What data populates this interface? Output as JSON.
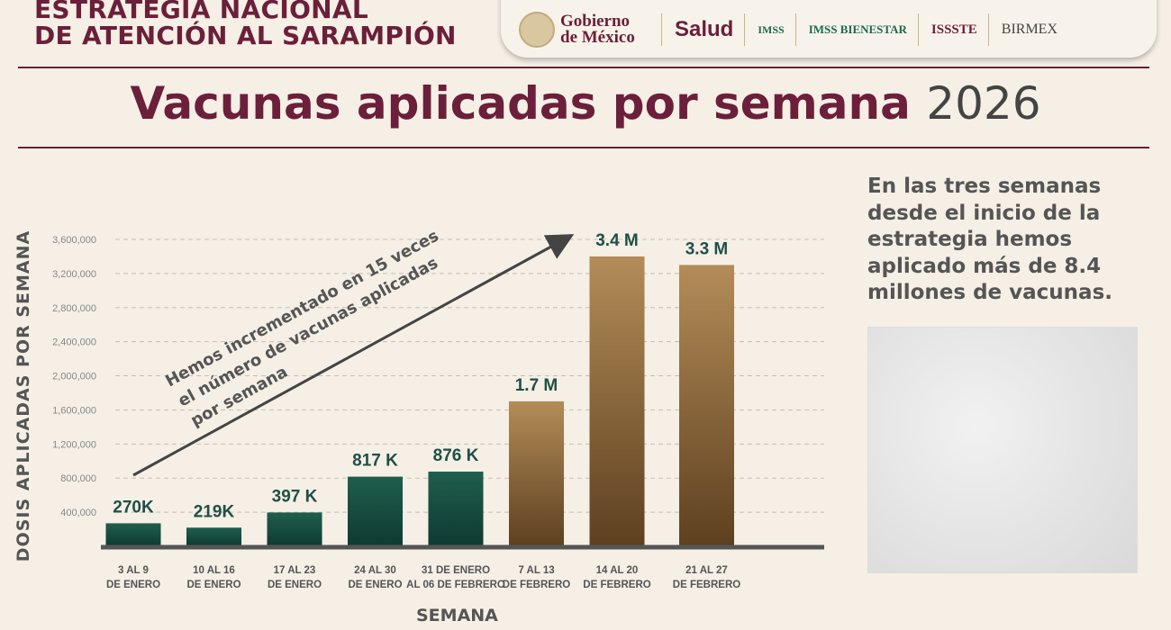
{
  "header": {
    "title_line1": "ESTRATEGIA NACIONAL",
    "title_line2": "DE ATENCIÓN AL SARAMPIÓN",
    "logos": [
      "Gobierno de México",
      "Salud",
      "IMSS",
      "IMSS BIENESTAR",
      "ISSSTE",
      "BIRMEX"
    ]
  },
  "title": {
    "main": "Vacunas aplicadas por semana",
    "year": "2026"
  },
  "side_text": "En las tres semanas desde el inicio de la estrategia hemos aplicado más de 8.4 millones de vacunas.",
  "colors": {
    "title": "#6b1f3a",
    "green_bar": "#1d5c4b",
    "gold_bar": "#a8814d"
  },
  "chart_data": {
    "type": "bar",
    "xlabel": "SEMANA",
    "ylabel": "DOSIS APLICADAS POR SEMANA",
    "ylim": [
      0,
      3600000
    ],
    "yticks": [
      400000,
      800000,
      1200000,
      1600000,
      2000000,
      2400000,
      2800000,
      3200000,
      3600000
    ],
    "ytick_labels": [
      "400,000",
      "800,000",
      "1,200,000",
      "1,600,000",
      "2,000,000",
      "2,400,000",
      "2,800,000",
      "3,200,000",
      "3,600,000"
    ],
    "grid": "horizontal dashed",
    "categories": [
      [
        "3 AL 9",
        "DE ENERO"
      ],
      [
        "10 AL 16",
        "DE ENERO"
      ],
      [
        "17 AL 23",
        "DE ENERO"
      ],
      [
        "24 AL 30",
        "DE ENERO"
      ],
      [
        "31  DE ENERO",
        "AL 06 DE FEBRERO"
      ],
      [
        "7 AL 13",
        "DE FEBRERO"
      ],
      [
        "14 AL 20",
        "DE FEBRERO"
      ],
      [
        "21  AL 27",
        "DE FEBRERO"
      ]
    ],
    "values": [
      270000,
      219000,
      397000,
      817000,
      876000,
      1700000,
      3400000,
      3300000
    ],
    "data_labels": [
      "270K",
      "219K",
      "397 K",
      "817 K",
      "876 K",
      "1.7 M",
      "3.4 M",
      "3.3 M"
    ],
    "bar_colors": [
      "green",
      "green",
      "green",
      "green",
      "green",
      "gold",
      "gold",
      "gold"
    ],
    "annotation": [
      "Hemos incrementado en 15 veces",
      "el número de vacunas aplicadas",
      "por semana"
    ]
  }
}
